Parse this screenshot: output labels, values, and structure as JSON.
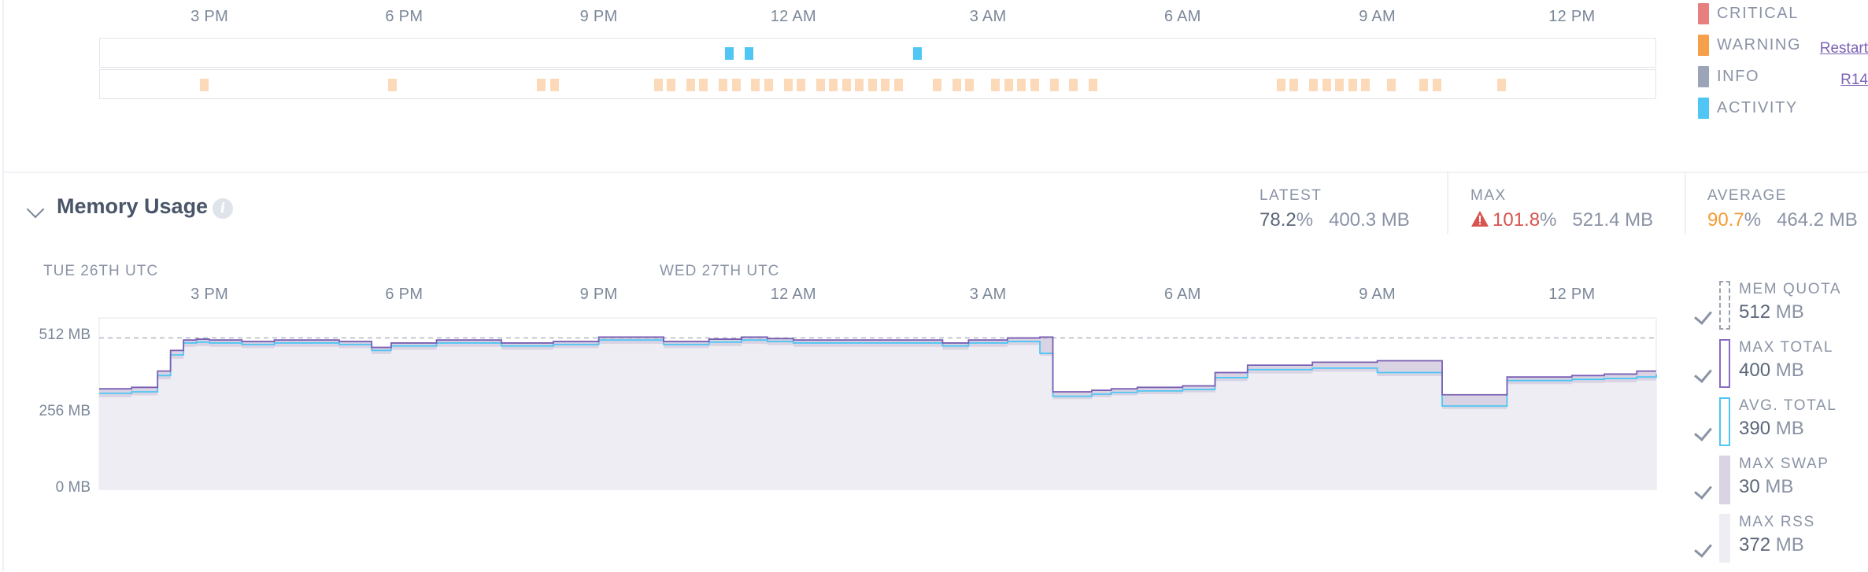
{
  "time_axis": [
    "3 PM",
    "6 PM",
    "9 PM",
    "12 AM",
    "3 AM",
    "6 AM",
    "9 AM",
    "12 PM"
  ],
  "events": {
    "rows": [
      {
        "label": "Restart",
        "color": "#4fc6f3",
        "hours": [
          23.0,
          23.3,
          25.9
        ]
      },
      {
        "label": "R14",
        "color": "#fbd9b9",
        "hours": [
          14.9,
          17.8,
          20.1,
          20.3,
          21.9,
          22.1,
          22.4,
          22.6,
          22.9,
          23.1,
          23.4,
          23.6,
          23.9,
          24.1,
          24.4,
          24.6,
          24.8,
          25.0,
          25.2,
          25.4,
          25.6,
          26.2,
          26.5,
          26.7,
          27.1,
          27.3,
          27.5,
          27.7,
          28.0,
          28.3,
          28.6,
          31.5,
          31.7,
          32.0,
          32.2,
          32.4,
          32.6,
          32.8,
          33.2,
          33.7,
          33.9,
          34.9
        ]
      }
    ]
  },
  "severity_legend": [
    {
      "label": "CRITICAL",
      "color": "#e77f7f"
    },
    {
      "label": "WARNING",
      "color": "#f7a04b"
    },
    {
      "label": "INFO",
      "color": "#9ba5b7"
    },
    {
      "label": "ACTIVITY",
      "color": "#4fc6f3"
    }
  ],
  "memory": {
    "title": "Memory Usage",
    "stats": {
      "latest": {
        "label": "LATEST",
        "pct": "78.2",
        "pct_unit": "%",
        "mb": "400.3 MB"
      },
      "max": {
        "label": "MAX",
        "pct": "101.8",
        "pct_unit": "%",
        "mb": "521.4 MB",
        "pct_color": "#d9534f"
      },
      "average": {
        "label": "AVERAGE",
        "pct": "90.7",
        "pct_unit": "%",
        "mb": "464.2 MB",
        "pct_color": "#f39c34"
      }
    },
    "date_labels": [
      "TUE 26TH UTC",
      "WED 27TH UTC"
    ],
    "legend": [
      {
        "label": "MEM QUOTA",
        "value": "512",
        "unit": "MB",
        "style": "dashed",
        "color": "#9aa1ad"
      },
      {
        "label": "MAX TOTAL",
        "value": "400",
        "unit": "MB",
        "style": "outline",
        "color": "#8a6bbf"
      },
      {
        "label": "AVG. TOTAL",
        "value": "390",
        "unit": "MB",
        "style": "outline",
        "color": "#4fc6f3"
      },
      {
        "label": "MAX SWAP",
        "value": "30",
        "unit": "MB",
        "style": "fill",
        "color": "#d9d3e3"
      },
      {
        "label": "MAX RSS",
        "value": "372",
        "unit": "MB",
        "style": "fill",
        "color": "#eeedf3"
      }
    ]
  },
  "chart_data": {
    "type": "line",
    "title": "Memory Usage",
    "x_unit": "hour of day (Tue 26th UTC; values above 24 are Wed 27th)",
    "x_range": [
      13.3,
      37.3
    ],
    "ylim": [
      0,
      580
    ],
    "y_ticks": [
      "512 MB",
      "256 MB",
      "0 MB"
    ],
    "y_tick_values": [
      512,
      256,
      0
    ],
    "quota": 512,
    "x": [
      13.3,
      13.8,
      14.2,
      14.4,
      14.6,
      14.8,
      15.0,
      15.5,
      16.0,
      17.0,
      17.5,
      17.8,
      18.5,
      19.5,
      20.3,
      21.0,
      22.0,
      22.7,
      23.0,
      23.2,
      23.6,
      24.0,
      25.0,
      25.7,
      26.0,
      26.3,
      26.7,
      27.0,
      27.3,
      27.8,
      28.0,
      28.3,
      28.6,
      28.9,
      29.3,
      30.0,
      30.5,
      31.0,
      32.0,
      33.0,
      34.0,
      35.0,
      36.0,
      36.5,
      37.0,
      37.3
    ],
    "series": [
      {
        "name": "MAX TOTAL",
        "values": [
          340,
          345,
          400,
          470,
          505,
          508,
          505,
          500,
          505,
          500,
          480,
          495,
          505,
          495,
          500,
          515,
          500,
          508,
          508,
          515,
          510,
          505,
          505,
          505,
          505,
          495,
          505,
          505,
          512,
          515,
          330,
          330,
          335,
          340,
          345,
          350,
          395,
          420,
          430,
          435,
          320,
          380,
          385,
          390,
          400,
          400
        ]
      },
      {
        "name": "AVG. TOTAL",
        "values": [
          325,
          330,
          385,
          455,
          495,
          498,
          495,
          490,
          495,
          490,
          470,
          485,
          495,
          485,
          490,
          505,
          490,
          498,
          498,
          505,
          500,
          495,
          495,
          495,
          495,
          485,
          495,
          495,
          500,
          460,
          315,
          315,
          322,
          328,
          333,
          338,
          378,
          405,
          410,
          395,
          282,
          368,
          372,
          375,
          380,
          390
        ]
      },
      {
        "name": "MAX RSS",
        "values": [
          312,
          318,
          372,
          442,
          482,
          485,
          482,
          478,
          482,
          478,
          458,
          472,
          482,
          472,
          478,
          492,
          478,
          485,
          485,
          492,
          488,
          482,
          482,
          482,
          482,
          472,
          482,
          482,
          488,
          452,
          305,
          305,
          312,
          318,
          322,
          328,
          366,
          392,
          398,
          383,
          272,
          356,
          360,
          362,
          368,
          372
        ]
      }
    ]
  }
}
